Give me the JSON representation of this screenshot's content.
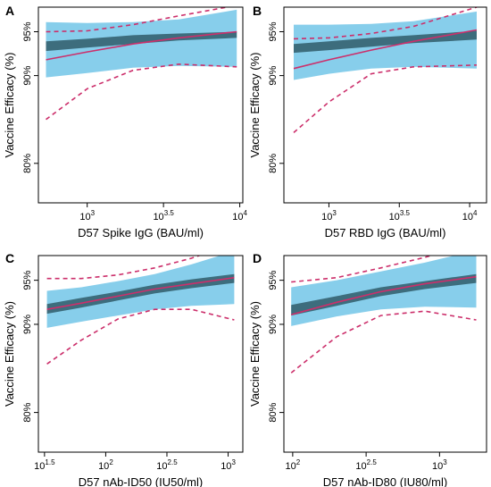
{
  "chart_data": [
    {
      "type": "line",
      "panel": "A",
      "xlabel": "D57 Spike IgG (BAU/ml)",
      "ylabel": "Vaccine Efficacy (%)",
      "xscale": "log10",
      "xlim": [
        2.68,
        4.02
      ],
      "xticks": [
        {
          "value": 3,
          "base": "10",
          "exp": "3"
        },
        {
          "value": 3.5,
          "base": "10",
          "exp": "3.5"
        },
        {
          "value": 4,
          "base": "10",
          "exp": "4"
        }
      ],
      "ylim": [
        75.5,
        97.8
      ],
      "yticks": [
        {
          "value": 80,
          "label": "80%"
        },
        {
          "value": 90,
          "label": "90%"
        },
        {
          "value": 95,
          "label": "95%"
        }
      ],
      "x": [
        2.73,
        3.0,
        3.3,
        3.6,
        3.98
      ],
      "ribbon_outer": {
        "upper": [
          96.1,
          96.0,
          96.1,
          96.4,
          97.5
        ],
        "lower": [
          89.8,
          90.3,
          90.9,
          91.1,
          91.0
        ]
      },
      "ribbon_inner": {
        "upper": [
          93.9,
          94.2,
          94.6,
          94.8,
          95.0
        ],
        "lower": [
          92.8,
          93.2,
          93.6,
          94.0,
          94.3
        ]
      },
      "estimate": [
        91.8,
        92.7,
        93.6,
        94.3,
        95.0
      ],
      "ci_upper": [
        95.0,
        95.1,
        95.8,
        96.8,
        98.0
      ],
      "ci_lower": [
        85.0,
        88.5,
        90.6,
        91.3,
        91.0
      ],
      "colors": {
        "outer": "#87ceeb",
        "inner": "#3d6d7d",
        "estimate": "#cc2f6b"
      }
    },
    {
      "type": "line",
      "panel": "B",
      "xlabel": "D57 RBD IgG (BAU/ml)",
      "ylabel": "Vaccine Efficacy (%)",
      "xscale": "log10",
      "xlim": [
        2.68,
        4.12
      ],
      "xticks": [
        {
          "value": 3,
          "base": "10",
          "exp": "3"
        },
        {
          "value": 3.5,
          "base": "10",
          "exp": "3.5"
        },
        {
          "value": 4,
          "base": "10",
          "exp": "4"
        }
      ],
      "ylim": [
        75.5,
        97.8
      ],
      "yticks": [
        {
          "value": 80,
          "label": "80%"
        },
        {
          "value": 90,
          "label": "90%"
        },
        {
          "value": 95,
          "label": "95%"
        }
      ],
      "x": [
        2.75,
        3.0,
        3.3,
        3.6,
        4.05
      ],
      "ribbon_outer": {
        "upper": [
          95.8,
          95.8,
          95.9,
          96.2,
          97.3
        ],
        "lower": [
          89.5,
          90.2,
          90.8,
          91.0,
          90.8
        ]
      },
      "ribbon_inner": {
        "upper": [
          93.6,
          93.9,
          94.3,
          94.6,
          95.1
        ],
        "lower": [
          92.6,
          92.9,
          93.3,
          93.7,
          94.1
        ]
      },
      "estimate": [
        90.8,
        91.8,
        92.9,
        93.9,
        95.2
      ],
      "ci_upper": [
        94.2,
        94.3,
        94.8,
        95.6,
        97.8
      ],
      "ci_lower": [
        83.5,
        87.0,
        90.2,
        91.0,
        91.2
      ],
      "colors": {
        "outer": "#87ceeb",
        "inner": "#3d6d7d",
        "estimate": "#cc2f6b"
      }
    },
    {
      "type": "line",
      "panel": "C",
      "xlabel": "D57 nAb-ID50 (IU50/ml)",
      "ylabel": "Vaccine Efficacy (%)",
      "xscale": "log10",
      "xlim": [
        1.45,
        3.12
      ],
      "xticks": [
        {
          "value": 1.5,
          "base": "10",
          "exp": "1.5"
        },
        {
          "value": 2,
          "base": "10",
          "exp": "2"
        },
        {
          "value": 2.5,
          "base": "10",
          "exp": "2.5"
        },
        {
          "value": 3,
          "base": "10",
          "exp": "3"
        }
      ],
      "ylim": [
        75.5,
        97.8
      ],
      "yticks": [
        {
          "value": 80,
          "label": "80%"
        },
        {
          "value": 90,
          "label": "90%"
        },
        {
          "value": 95,
          "label": "95%"
        }
      ],
      "x": [
        1.52,
        1.8,
        2.1,
        2.4,
        2.7,
        3.05
      ],
      "ribbon_outer": {
        "upper": [
          93.8,
          94.2,
          94.9,
          95.7,
          96.8,
          98.3
        ],
        "lower": [
          89.6,
          90.3,
          91.0,
          91.7,
          92.1,
          92.3
        ]
      },
      "ribbon_inner": {
        "upper": [
          92.3,
          93.0,
          93.7,
          94.5,
          95.1,
          95.7
        ],
        "lower": [
          91.2,
          91.9,
          92.7,
          93.5,
          94.1,
          94.7
        ]
      },
      "estimate": [
        91.7,
        92.4,
        93.2,
        94.0,
        94.6,
        95.3
      ],
      "ci_upper": [
        95.2,
        95.2,
        95.6,
        96.4,
        97.5,
        99.2
      ],
      "ci_lower": [
        85.5,
        88.2,
        90.6,
        91.7,
        91.7,
        90.5
      ],
      "colors": {
        "outer": "#87ceeb",
        "inner": "#3d6d7d",
        "estimate": "#cc2f6b"
      }
    },
    {
      "type": "line",
      "panel": "D",
      "xlabel": "D57 nAb-ID80 (IU80/ml)",
      "ylabel": "Vaccine Efficacy (%)",
      "xscale": "log10",
      "xlim": [
        1.94,
        3.32
      ],
      "xticks": [
        {
          "value": 2,
          "base": "10",
          "exp": "2"
        },
        {
          "value": 2.5,
          "base": "10",
          "exp": "2.5"
        },
        {
          "value": 3,
          "base": "10",
          "exp": "3"
        }
      ],
      "ylim": [
        75.5,
        97.8
      ],
      "yticks": [
        {
          "value": 80,
          "label": "80%"
        },
        {
          "value": 90,
          "label": "90%"
        },
        {
          "value": 95,
          "label": "95%"
        }
      ],
      "x": [
        1.99,
        2.3,
        2.6,
        2.9,
        3.25
      ],
      "ribbon_outer": {
        "upper": [
          94.2,
          95.0,
          96.0,
          97.0,
          98.4
        ],
        "lower": [
          89.8,
          90.9,
          91.7,
          92.0,
          91.9
        ]
      },
      "ribbon_inner": {
        "upper": [
          92.2,
          93.2,
          94.2,
          94.9,
          95.7
        ],
        "lower": [
          91.0,
          92.1,
          93.2,
          94.0,
          94.7
        ]
      },
      "estimate": [
        91.1,
        92.5,
        93.7,
        94.6,
        95.4
      ],
      "ci_upper": [
        94.8,
        95.3,
        96.4,
        97.6,
        99.3
      ],
      "ci_lower": [
        84.5,
        88.6,
        91.0,
        91.5,
        90.5
      ],
      "colors": {
        "outer": "#87ceeb",
        "inner": "#3d6d7d",
        "estimate": "#cc2f6b"
      }
    }
  ]
}
